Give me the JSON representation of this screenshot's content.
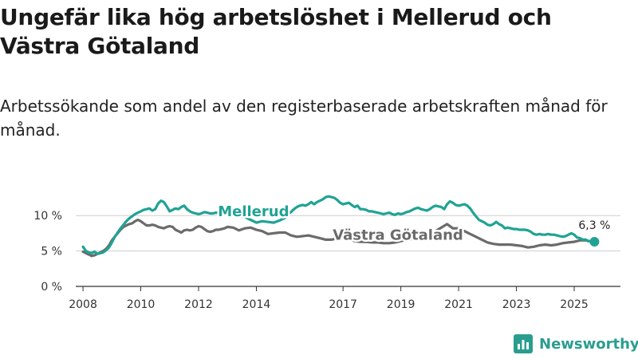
{
  "title": "Ungefär lika hög arbetslöshet i Mellerud och Västra Götaland",
  "subtitle": "Arbetssökande som andel av den registerbaserade arbetskraften månad för månad.",
  "brand": {
    "name": "Newsworthy",
    "icon": "bar-chart-icon",
    "color": "#2a9d8f"
  },
  "chart_data": {
    "type": "line",
    "title": "Ungefär lika hög arbetslöshet i Mellerud och Västra Götaland",
    "xlabel": "",
    "ylabel": "",
    "xlim": [
      2007.75,
      2026.6
    ],
    "ylim": [
      0,
      12.5
    ],
    "y_ticks": [
      0,
      5,
      10
    ],
    "y_tick_labels": [
      "0 %",
      "5 %",
      "10 %"
    ],
    "x_ticks": [
      2008,
      2010,
      2012,
      2014,
      2017,
      2019,
      2021,
      2023,
      2025
    ],
    "x_tick_labels": [
      "2008",
      "2010",
      "2012",
      "2014",
      "2017",
      "2019",
      "2021",
      "2023",
      "2025"
    ],
    "grid": true,
    "end_label": "6,3 %",
    "series": [
      {
        "name": "Mellerud",
        "color": "#1fa394",
        "x": [
          2008.0,
          2008.1,
          2008.2,
          2008.3,
          2008.4,
          2008.5,
          2008.6,
          2008.7,
          2008.8,
          2008.9,
          2009.0,
          2009.1,
          2009.2,
          2009.3,
          2009.4,
          2009.5,
          2009.6,
          2009.7,
          2009.8,
          2009.9,
          2010.0,
          2010.1,
          2010.2,
          2010.3,
          2010.4,
          2010.5,
          2010.6,
          2010.7,
          2010.8,
          2010.9,
          2011.0,
          2011.1,
          2011.2,
          2011.3,
          2011.4,
          2011.5,
          2011.6,
          2011.7,
          2011.8,
          2011.9,
          2012.0,
          2012.1,
          2012.2,
          2012.3,
          2012.4,
          2012.5,
          2012.6,
          2012.7,
          2012.8,
          2012.9,
          2013.0,
          2013.2,
          2013.4,
          2013.6,
          2013.8,
          2014.0,
          2014.2,
          2014.4,
          2014.6,
          2014.8,
          2015.0,
          2015.1,
          2015.2,
          2015.3,
          2015.4,
          2015.5,
          2015.6,
          2015.7,
          2015.8,
          2015.9,
          2016.0,
          2016.1,
          2016.2,
          2016.3,
          2016.4,
          2016.5,
          2016.6,
          2016.7,
          2016.8,
          2016.9,
          2017.0,
          2017.1,
          2017.2,
          2017.3,
          2017.4,
          2017.5,
          2017.6,
          2017.7,
          2017.8,
          2017.9,
          2018.0,
          2018.1,
          2018.2,
          2018.3,
          2018.4,
          2018.5,
          2018.6,
          2018.7,
          2018.8,
          2018.9,
          2019.0,
          2019.1,
          2019.2,
          2019.3,
          2019.4,
          2019.5,
          2019.6,
          2019.7,
          2019.8,
          2019.9,
          2020.0,
          2020.1,
          2020.2,
          2020.3,
          2020.4,
          2020.5,
          2020.6,
          2020.7,
          2020.8,
          2020.9,
          2021.0,
          2021.1,
          2021.2,
          2021.3,
          2021.4,
          2021.5,
          2021.6,
          2021.7,
          2021.8,
          2021.9,
          2022.0,
          2022.1,
          2022.2,
          2022.3,
          2022.4,
          2022.5,
          2022.6,
          2022.7,
          2022.8,
          2022.9,
          2023.0,
          2023.1,
          2023.2,
          2023.3,
          2023.4,
          2023.5,
          2023.6,
          2023.7,
          2023.8,
          2023.9,
          2024.0,
          2024.1,
          2024.2,
          2024.3,
          2024.4,
          2024.5,
          2024.6,
          2024.7,
          2024.8,
          2024.9,
          2025.0,
          2025.1,
          2025.2,
          2025.3,
          2025.4,
          2025.5,
          2025.6,
          2025.7
        ],
        "y": [
          5.6,
          5.0,
          4.8,
          4.7,
          4.9,
          4.6,
          4.7,
          4.8,
          5.1,
          5.5,
          6.2,
          7.0,
          7.6,
          8.2,
          8.7,
          9.2,
          9.6,
          9.9,
          10.2,
          10.4,
          10.6,
          10.8,
          10.9,
          11.0,
          10.7,
          10.9,
          11.7,
          12.1,
          11.9,
          11.3,
          10.6,
          10.8,
          11.0,
          10.9,
          11.2,
          11.4,
          10.9,
          10.6,
          10.4,
          10.3,
          10.2,
          10.3,
          10.5,
          10.4,
          10.3,
          10.3,
          10.4,
          10.4,
          10.4,
          10.5,
          10.3,
          10.1,
          9.9,
          9.8,
          9.4,
          9.0,
          9.2,
          9.1,
          9.0,
          9.3,
          9.7,
          10.2,
          10.5,
          10.9,
          11.2,
          11.4,
          11.5,
          11.4,
          11.6,
          11.9,
          11.6,
          11.9,
          12.1,
          12.3,
          12.6,
          12.7,
          12.6,
          12.5,
          12.2,
          11.8,
          11.6,
          11.7,
          11.8,
          11.5,
          11.2,
          11.4,
          10.9,
          10.9,
          10.8,
          10.6,
          10.6,
          10.5,
          10.4,
          10.3,
          10.2,
          10.3,
          10.4,
          10.2,
          10.1,
          10.3,
          10.2,
          10.3,
          10.5,
          10.6,
          10.8,
          11.0,
          11.1,
          10.9,
          10.8,
          10.7,
          10.9,
          11.2,
          11.4,
          11.3,
          11.2,
          10.9,
          11.6,
          12.0,
          11.8,
          11.5,
          11.4,
          11.5,
          11.6,
          11.4,
          11.0,
          10.4,
          9.9,
          9.4,
          9.2,
          9.0,
          8.7,
          8.6,
          8.8,
          9.1,
          8.8,
          8.6,
          8.2,
          8.3,
          8.2,
          8.1,
          8.1,
          8.0,
          8.0,
          8.0,
          7.9,
          7.7,
          7.4,
          7.3,
          7.4,
          7.3,
          7.3,
          7.4,
          7.3,
          7.3,
          7.2,
          7.1,
          7.0,
          7.1,
          7.3,
          7.5,
          7.3,
          6.9,
          6.8,
          6.6,
          6.6,
          6.4,
          6.3,
          6.3
        ],
        "label": "Mellerud",
        "label_at": [
          2013.9,
          9.9
        ]
      },
      {
        "name": "Västra Götaland",
        "color": "#6b6b6b",
        "x": [
          2008.0,
          2008.1,
          2008.2,
          2008.3,
          2008.4,
          2008.5,
          2008.6,
          2008.7,
          2008.8,
          2008.9,
          2009.0,
          2009.1,
          2009.2,
          2009.3,
          2009.4,
          2009.5,
          2009.6,
          2009.7,
          2009.8,
          2009.9,
          2010.0,
          2010.1,
          2010.2,
          2010.3,
          2010.4,
          2010.5,
          2010.6,
          2010.7,
          2010.8,
          2010.9,
          2011.0,
          2011.1,
          2011.2,
          2011.3,
          2011.4,
          2011.5,
          2011.6,
          2011.7,
          2011.8,
          2011.9,
          2012.0,
          2012.1,
          2012.2,
          2012.3,
          2012.4,
          2012.5,
          2012.6,
          2012.7,
          2012.8,
          2012.9,
          2013.0,
          2013.2,
          2013.4,
          2013.6,
          2013.8,
          2014.0,
          2014.2,
          2014.4,
          2014.6,
          2014.8,
          2015.0,
          2015.2,
          2015.4,
          2015.6,
          2015.8,
          2016.0,
          2016.2,
          2016.4,
          2016.6,
          2016.8,
          2017.0,
          2017.2,
          2017.4,
          2017.6,
          2017.8,
          2018.0,
          2018.2,
          2018.4,
          2018.6,
          2018.8,
          2019.0,
          2019.2,
          2019.4,
          2019.6,
          2019.8,
          2020.0,
          2020.2,
          2020.4,
          2020.6,
          2020.8,
          2021.0,
          2021.2,
          2021.4,
          2021.6,
          2021.8,
          2022.0,
          2022.2,
          2022.4,
          2022.6,
          2022.8,
          2023.0,
          2023.2,
          2023.4,
          2023.6,
          2023.8,
          2024.0,
          2024.2,
          2024.4,
          2024.6,
          2024.8,
          2025.0,
          2025.2,
          2025.4,
          2025.6,
          2025.7
        ],
        "y": [
          4.9,
          4.7,
          4.5,
          4.3,
          4.4,
          4.6,
          4.8,
          5.0,
          5.3,
          5.8,
          6.5,
          7.0,
          7.5,
          8.0,
          8.4,
          8.6,
          8.8,
          8.9,
          9.2,
          9.4,
          9.2,
          8.9,
          8.6,
          8.6,
          8.7,
          8.6,
          8.4,
          8.3,
          8.2,
          8.4,
          8.5,
          8.4,
          8.0,
          7.8,
          7.6,
          7.9,
          8.0,
          7.9,
          8.0,
          8.3,
          8.5,
          8.4,
          8.1,
          7.8,
          7.7,
          7.8,
          8.0,
          8.0,
          8.1,
          8.2,
          8.4,
          8.3,
          7.9,
          8.2,
          8.3,
          8.0,
          7.8,
          7.4,
          7.5,
          7.6,
          7.6,
          7.2,
          7.0,
          7.1,
          7.2,
          7.0,
          6.8,
          6.6,
          6.6,
          6.8,
          6.9,
          6.7,
          6.4,
          6.3,
          6.3,
          6.2,
          6.2,
          6.1,
          6.1,
          6.2,
          6.4,
          6.6,
          6.7,
          6.9,
          7.1,
          7.4,
          7.8,
          8.3,
          8.8,
          8.2,
          8.2,
          7.8,
          7.4,
          7.0,
          6.6,
          6.2,
          6.0,
          5.9,
          5.9,
          5.9,
          5.8,
          5.7,
          5.5,
          5.6,
          5.8,
          5.9,
          5.8,
          5.9,
          6.1,
          6.2,
          6.3,
          6.5,
          6.5,
          6.3,
          6.3
        ],
        "label": "Västra Götaland",
        "label_at": [
          2018.9,
          6.6
        ]
      }
    ]
  }
}
